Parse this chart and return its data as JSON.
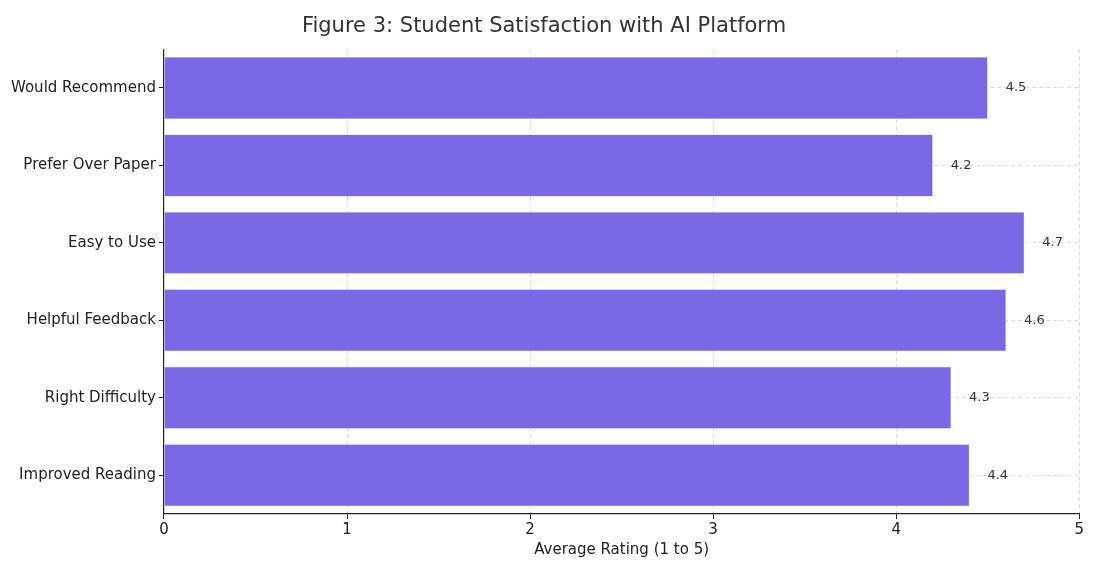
{
  "chart_data": {
    "type": "bar",
    "orientation": "horizontal",
    "title": "Figure 3: Student Satisfaction with AI Platform",
    "xlabel": "Average Rating (1 to 5)",
    "categories": [
      "Would Recommend",
      "Prefer Over Paper",
      "Easy to Use",
      "Helpful Feedback",
      "Right Difficulty",
      "Improved Reading"
    ],
    "values": [
      4.5,
      4.2,
      4.7,
      4.6,
      4.3,
      4.4
    ],
    "color": "#7b68e4",
    "xlim": [
      0,
      5
    ],
    "xticks": [
      0,
      1,
      2,
      3,
      4,
      5
    ],
    "grid": true,
    "data_labels": true,
    "legend": false
  }
}
